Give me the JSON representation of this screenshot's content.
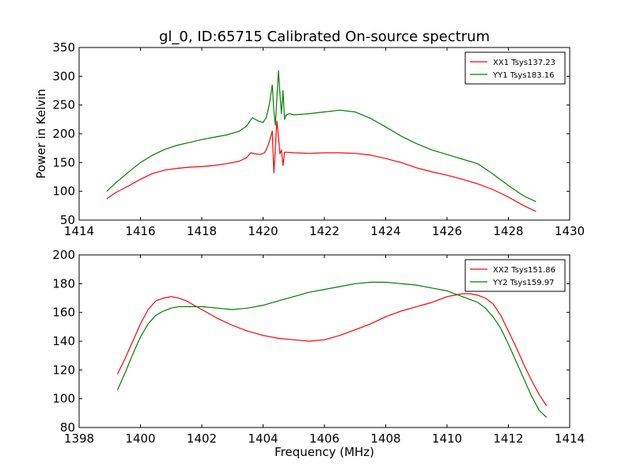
{
  "figure": {
    "title": "gl_0, ID:65715 Calibrated On-source spectrum",
    "xlabel": "Frequency (MHz)",
    "ylabel": "Power in Kelvin",
    "colors": {
      "red": "#ff0000",
      "green": "#007f00"
    }
  },
  "chart_data": [
    {
      "type": "line",
      "xlim": [
        1414,
        1430
      ],
      "ylim": [
        50,
        350
      ],
      "xticks": [
        1414,
        1416,
        1418,
        1420,
        1422,
        1424,
        1426,
        1428,
        1430
      ],
      "yticks": [
        50,
        100,
        150,
        200,
        250,
        300,
        350
      ],
      "xlabel": "",
      "ylabel": "Power in Kelvin",
      "legend_position": "top-right",
      "grid": false,
      "series": [
        {
          "name": "XX1 Tsys137.23",
          "color": "#ff0000",
          "x": [
            1414.9,
            1415.2,
            1415.6,
            1416.0,
            1416.4,
            1416.8,
            1417.2,
            1417.6,
            1418.0,
            1418.4,
            1418.8,
            1419.2,
            1419.45,
            1419.6,
            1419.75,
            1419.9,
            1420.05,
            1420.15,
            1420.25,
            1420.3,
            1420.35,
            1420.4,
            1420.45,
            1420.5,
            1420.55,
            1420.6,
            1420.65,
            1420.7,
            1420.8,
            1421.0,
            1421.5,
            1422.0,
            1422.5,
            1423.0,
            1423.5,
            1424.0,
            1424.5,
            1425.0,
            1425.5,
            1426.0,
            1426.5,
            1427.0,
            1427.5,
            1428.0,
            1428.5,
            1428.9
          ],
          "y": [
            87,
            98,
            109,
            121,
            131,
            137,
            140,
            142,
            143,
            145,
            148,
            152,
            158,
            167,
            165,
            164,
            167,
            178,
            195,
            205,
            132,
            175,
            222,
            195,
            165,
            172,
            145,
            168,
            168,
            167,
            166,
            167,
            167,
            166,
            163,
            157,
            150,
            141,
            134,
            128,
            121,
            113,
            103,
            90,
            75,
            65
          ]
        },
        {
          "name": "YY1 Tsys183.16",
          "color": "#007f00",
          "x": [
            1414.9,
            1415.2,
            1415.6,
            1416.0,
            1416.4,
            1416.8,
            1417.2,
            1417.6,
            1418.0,
            1418.4,
            1418.8,
            1419.2,
            1419.45,
            1419.65,
            1419.85,
            1420.0,
            1420.1,
            1420.2,
            1420.3,
            1420.35,
            1420.4,
            1420.45,
            1420.5,
            1420.55,
            1420.6,
            1420.65,
            1420.7,
            1420.75,
            1420.85,
            1421.0,
            1421.5,
            1422.0,
            1422.5,
            1423.0,
            1423.5,
            1424.0,
            1424.5,
            1425.0,
            1425.5,
            1426.0,
            1426.5,
            1427.0,
            1427.5,
            1428.0,
            1428.5,
            1428.9
          ],
          "y": [
            100,
            115,
            133,
            150,
            163,
            173,
            180,
            185,
            190,
            194,
            198,
            204,
            213,
            228,
            222,
            220,
            228,
            250,
            285,
            240,
            215,
            260,
            310,
            270,
            235,
            275,
            225,
            232,
            235,
            233,
            235,
            238,
            241,
            238,
            227,
            212,
            196,
            183,
            172,
            164,
            156,
            148,
            130,
            110,
            92,
            82
          ]
        }
      ]
    },
    {
      "type": "line",
      "xlim": [
        1398,
        1414
      ],
      "ylim": [
        80,
        200
      ],
      "xticks": [
        1398,
        1400,
        1402,
        1404,
        1406,
        1408,
        1410,
        1412,
        1414
      ],
      "yticks": [
        80,
        100,
        120,
        140,
        160,
        180,
        200
      ],
      "xlabel": "Frequency (MHz)",
      "ylabel": "",
      "legend_position": "top-right",
      "grid": false,
      "series": [
        {
          "name": "XX2 Tsys151.86",
          "color": "#ff0000",
          "x": [
            1399.25,
            1399.5,
            1399.75,
            1400.0,
            1400.25,
            1400.5,
            1400.75,
            1401.0,
            1401.25,
            1401.5,
            1401.75,
            1402.0,
            1402.5,
            1403.0,
            1403.5,
            1404.0,
            1404.5,
            1405.0,
            1405.5,
            1406.0,
            1406.5,
            1407.0,
            1407.5,
            1408.0,
            1408.5,
            1409.0,
            1409.5,
            1410.0,
            1410.25,
            1410.5,
            1410.75,
            1411.0,
            1411.25,
            1411.5,
            1411.75,
            1412.0,
            1412.25,
            1412.5,
            1412.75,
            1413.0,
            1413.25
          ],
          "y": [
            117,
            128,
            140,
            152,
            162,
            168,
            170,
            171,
            170,
            168,
            165,
            162,
            156,
            151,
            147,
            144,
            142,
            141,
            140,
            141,
            144,
            148,
            152,
            157,
            161,
            164,
            167,
            171,
            172,
            173,
            173,
            172,
            170,
            166,
            158,
            147,
            136,
            124,
            113,
            103,
            95
          ]
        },
        {
          "name": "YY2 Tsys159.97",
          "color": "#007f00",
          "x": [
            1399.25,
            1399.5,
            1399.75,
            1400.0,
            1400.25,
            1400.5,
            1400.75,
            1401.0,
            1401.25,
            1401.5,
            1401.75,
            1402.0,
            1402.5,
            1403.0,
            1403.5,
            1404.0,
            1404.5,
            1405.0,
            1405.5,
            1406.0,
            1406.5,
            1407.0,
            1407.5,
            1408.0,
            1408.5,
            1409.0,
            1409.5,
            1410.0,
            1410.25,
            1410.5,
            1410.75,
            1411.0,
            1411.25,
            1411.5,
            1411.75,
            1412.0,
            1412.25,
            1412.5,
            1412.75,
            1413.0,
            1413.25
          ],
          "y": [
            106,
            118,
            131,
            143,
            152,
            158,
            161,
            163,
            164,
            164,
            164,
            164,
            163,
            162,
            163,
            165,
            168,
            171,
            174,
            176,
            178,
            180,
            181,
            181,
            180,
            179,
            177,
            175,
            173,
            171,
            169,
            167,
            163,
            157,
            149,
            138,
            126,
            114,
            102,
            92,
            87
          ]
        }
      ]
    }
  ]
}
